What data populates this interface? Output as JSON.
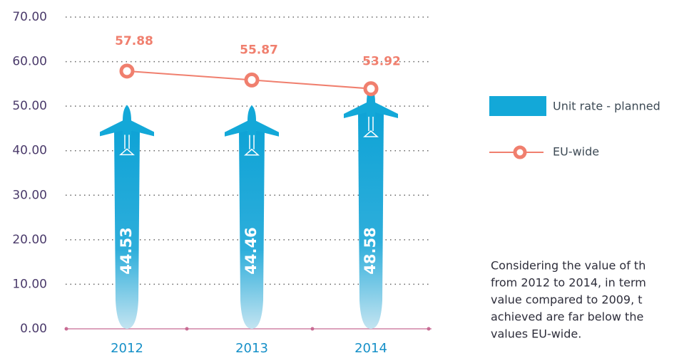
{
  "chart_data": {
    "type": "bar",
    "categories": [
      "2012",
      "2013",
      "2014"
    ],
    "series": [
      {
        "name": "Unit rate - planned",
        "color": "#13a8d8",
        "values": [
          44.53,
          44.46,
          48.58
        ]
      },
      {
        "name": "EU-wide",
        "color": "#f07f6e",
        "type": "line",
        "values": [
          57.88,
          55.87,
          53.92
        ]
      }
    ],
    "ylim": [
      0,
      70
    ],
    "yticks": [
      {
        "value": 0,
        "label": "0.00"
      },
      {
        "value": 10,
        "label": "10.00"
      },
      {
        "value": 20,
        "label": "20.00"
      },
      {
        "value": 30,
        "label": "30.00"
      },
      {
        "value": 40,
        "label": "40.00"
      },
      {
        "value": 50,
        "label": "50.00"
      },
      {
        "value": 60,
        "label": "60.00"
      },
      {
        "value": 70,
        "label": "70.00"
      }
    ],
    "grid": true,
    "legend": "right",
    "note_lines": [
      "Considering the value of th",
      "from 2012 to 2014, in term",
      "value compared to 2009, t",
      "achieved are far below the",
      "values EU-wide."
    ]
  }
}
